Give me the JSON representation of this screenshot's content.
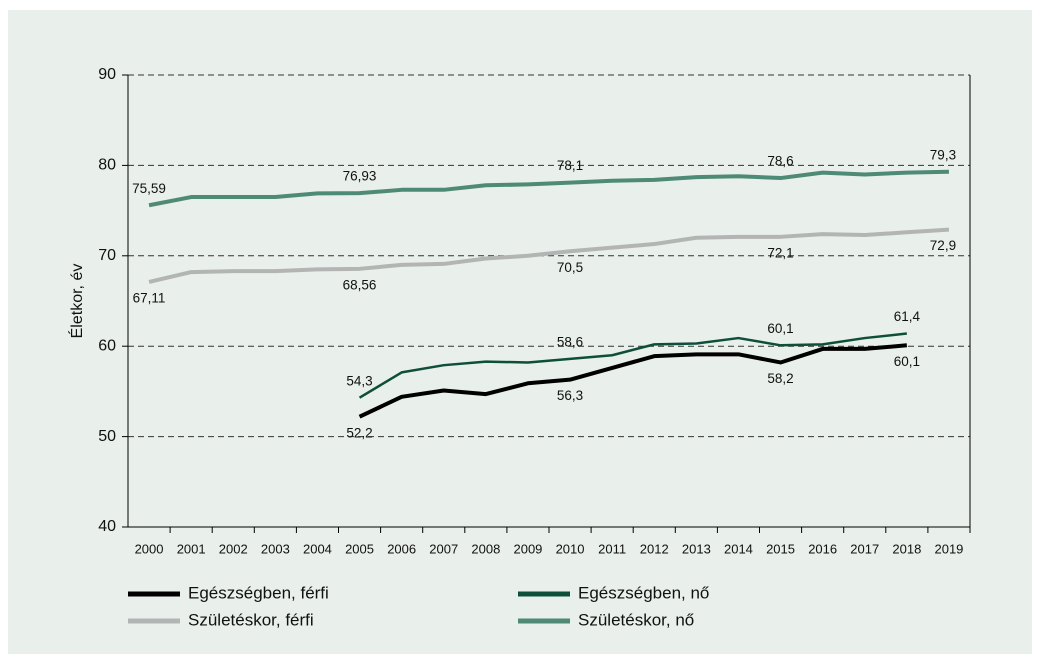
{
  "chart_data": {
    "type": "line",
    "y_label": "Életkor, év",
    "categories": [
      "2000",
      "2001",
      "2002",
      "2003",
      "2004",
      "2005",
      "2006",
      "2007",
      "2008",
      "2009",
      "2010",
      "2011",
      "2012",
      "2013",
      "2014",
      "2015",
      "2016",
      "2017",
      "2018",
      "2019"
    ],
    "ylim": [
      40,
      90
    ],
    "yticks": [
      40,
      50,
      60,
      70,
      80,
      90
    ],
    "grid": true,
    "series": [
      {
        "name": "Egészségben, férfi",
        "color": "#000000",
        "values": [
          null,
          null,
          null,
          null,
          null,
          52.2,
          54.4,
          55.1,
          54.7,
          55.9,
          56.3,
          57.6,
          58.9,
          59.1,
          59.1,
          58.2,
          59.7,
          59.7,
          60.1,
          null
        ],
        "value_labels": [
          null,
          null,
          null,
          null,
          null,
          "52,2",
          null,
          null,
          null,
          null,
          "56,3",
          null,
          null,
          null,
          null,
          "58,2",
          null,
          null,
          "60,1",
          null
        ]
      },
      {
        "name": "Egészségben, nő",
        "color": "#0e4f3b",
        "values": [
          null,
          null,
          null,
          null,
          null,
          54.3,
          57.1,
          57.9,
          58.3,
          58.2,
          58.6,
          59.0,
          60.2,
          60.3,
          60.9,
          60.1,
          60.2,
          60.9,
          61.4,
          null
        ],
        "value_labels": [
          null,
          null,
          null,
          null,
          null,
          "54,3",
          null,
          null,
          null,
          null,
          "58,6",
          null,
          null,
          null,
          null,
          "60,1",
          null,
          null,
          "61,4",
          null
        ]
      },
      {
        "name": "Születéskor, férfi",
        "color": "#b3b5b4",
        "values": [
          67.11,
          68.2,
          68.3,
          68.3,
          68.5,
          68.56,
          69.0,
          69.1,
          69.7,
          70.0,
          70.5,
          70.9,
          71.3,
          72.0,
          72.1,
          72.1,
          72.4,
          72.3,
          72.6,
          72.9
        ],
        "value_labels": [
          "67,11",
          null,
          null,
          null,
          null,
          "68,56",
          null,
          null,
          null,
          null,
          "70,5",
          null,
          null,
          null,
          null,
          "72,1",
          null,
          null,
          null,
          "72,9"
        ]
      },
      {
        "name": "Születéskor, nő",
        "color": "#4e8a76",
        "values": [
          75.59,
          76.5,
          76.5,
          76.5,
          76.9,
          76.93,
          77.3,
          77.3,
          77.8,
          77.9,
          78.1,
          78.3,
          78.4,
          78.7,
          78.8,
          78.6,
          79.2,
          79.0,
          79.2,
          79.3
        ],
        "value_labels": [
          "75,59",
          null,
          null,
          null,
          null,
          "76,93",
          null,
          null,
          null,
          null,
          "78,1",
          null,
          null,
          null,
          null,
          "78,6",
          null,
          null,
          null,
          "79,3"
        ]
      }
    ]
  }
}
